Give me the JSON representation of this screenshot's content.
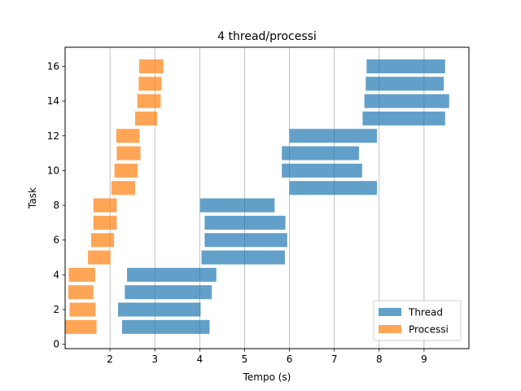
{
  "chart_data": {
    "type": "bar",
    "orientation": "horizontal",
    "title": "4 thread/processi",
    "xlabel": "Tempo (s)",
    "ylabel": "Task",
    "xlim": [
      1.0,
      10.0
    ],
    "ylim": [
      -0.25,
      17.1
    ],
    "xticks": [
      2,
      3,
      4,
      5,
      6,
      7,
      8,
      9
    ],
    "yticks": [
      0,
      2,
      4,
      6,
      8,
      10,
      12,
      14,
      16
    ],
    "grid": "x",
    "legend_position": "lower right",
    "series": [
      {
        "name": "Thread",
        "color": "#1f77b4",
        "bars": [
          {
            "task": 1,
            "start": 2.27,
            "end": 4.22
          },
          {
            "task": 2,
            "start": 2.18,
            "end": 4.02
          },
          {
            "task": 3,
            "start": 2.33,
            "end": 4.27
          },
          {
            "task": 4,
            "start": 2.38,
            "end": 4.37
          },
          {
            "task": 5,
            "start": 4.04,
            "end": 5.9
          },
          {
            "task": 6,
            "start": 4.11,
            "end": 5.95
          },
          {
            "task": 7,
            "start": 4.11,
            "end": 5.91
          },
          {
            "task": 8,
            "start": 4.01,
            "end": 5.67
          },
          {
            "task": 9,
            "start": 6.0,
            "end": 7.95
          },
          {
            "task": 10,
            "start": 5.83,
            "end": 7.62
          },
          {
            "task": 11,
            "start": 5.83,
            "end": 7.55
          },
          {
            "task": 12,
            "start": 6.0,
            "end": 7.95
          },
          {
            "task": 13,
            "start": 7.63,
            "end": 9.47
          },
          {
            "task": 14,
            "start": 7.67,
            "end": 9.56
          },
          {
            "task": 15,
            "start": 7.7,
            "end": 9.44
          },
          {
            "task": 16,
            "start": 7.72,
            "end": 9.47
          }
        ]
      },
      {
        "name": "Processi",
        "color": "#ff7f0e",
        "bars": [
          {
            "task": 1,
            "start": 1.0,
            "end": 1.7
          },
          {
            "task": 2,
            "start": 1.1,
            "end": 1.68
          },
          {
            "task": 3,
            "start": 1.07,
            "end": 1.63
          },
          {
            "task": 4,
            "start": 1.08,
            "end": 1.67
          },
          {
            "task": 5,
            "start": 1.51,
            "end": 2.01
          },
          {
            "task": 6,
            "start": 1.58,
            "end": 2.09
          },
          {
            "task": 7,
            "start": 1.63,
            "end": 2.15
          },
          {
            "task": 8,
            "start": 1.63,
            "end": 2.15
          },
          {
            "task": 9,
            "start": 2.03,
            "end": 2.56
          },
          {
            "task": 10,
            "start": 2.1,
            "end": 2.62
          },
          {
            "task": 11,
            "start": 2.15,
            "end": 2.68
          },
          {
            "task": 12,
            "start": 2.14,
            "end": 2.66
          },
          {
            "task": 13,
            "start": 2.56,
            "end": 3.05
          },
          {
            "task": 14,
            "start": 2.61,
            "end": 3.13
          },
          {
            "task": 15,
            "start": 2.64,
            "end": 3.15
          },
          {
            "task": 16,
            "start": 2.65,
            "end": 3.19
          }
        ]
      }
    ]
  }
}
